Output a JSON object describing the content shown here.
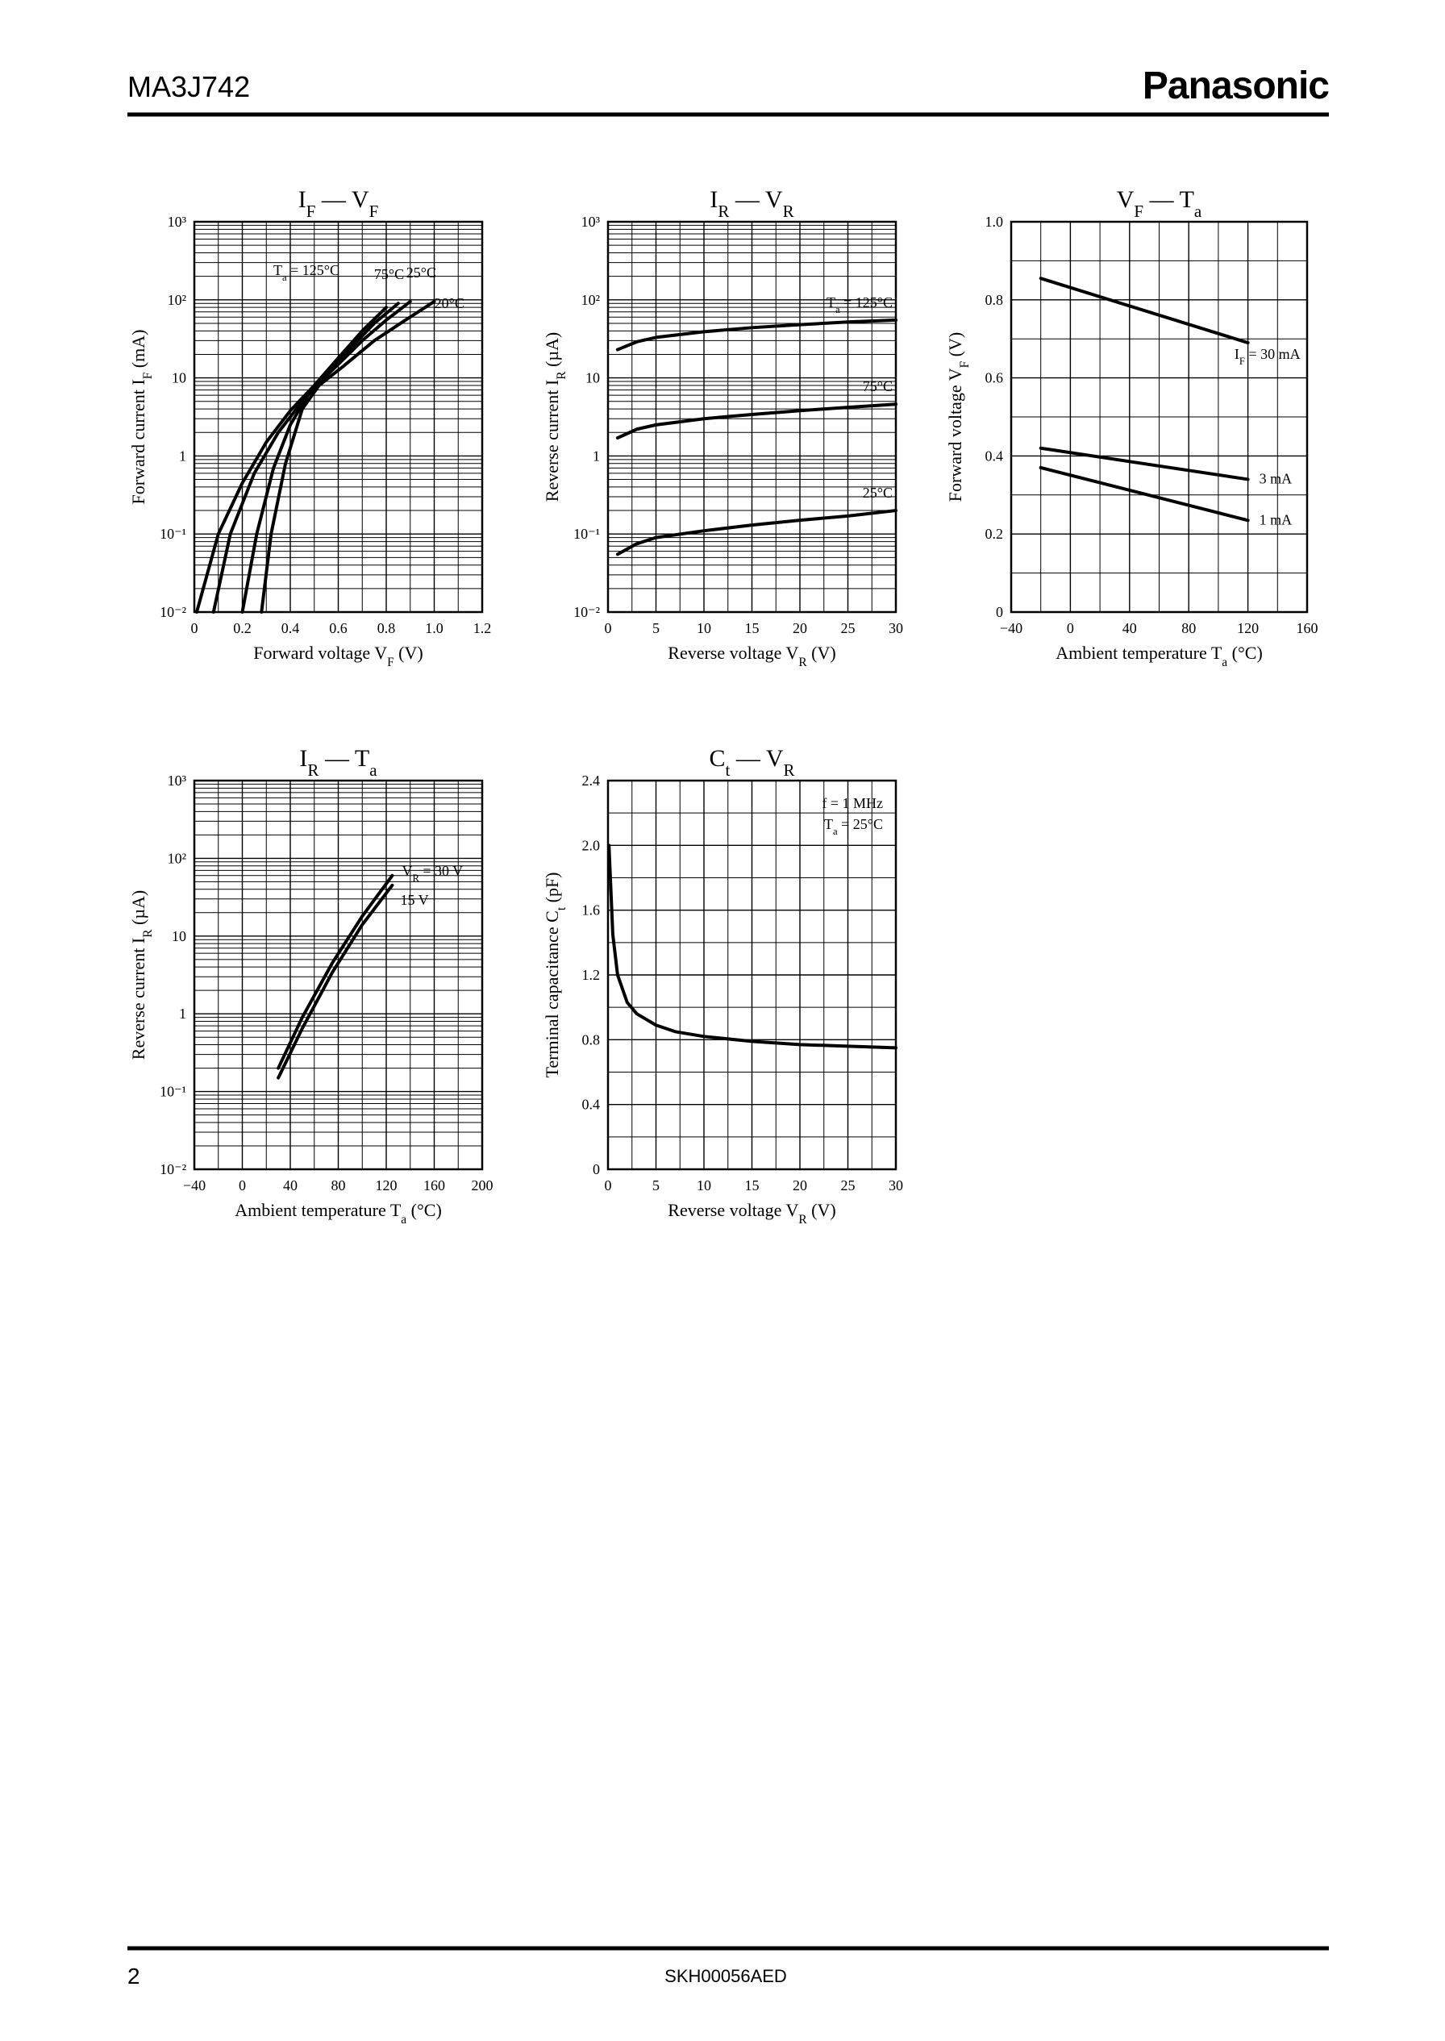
{
  "header": {
    "title": "MA3J742",
    "brand": "Panasonic"
  },
  "footer": {
    "page": "2",
    "code": "SKH00056AED"
  },
  "chart_data": [
    {
      "type": "line",
      "title": [
        {
          "text": "I"
        },
        {
          "text": "F",
          "sub": true
        },
        {
          "text": " — "
        },
        {
          "text": "V"
        },
        {
          "text": "F",
          "sub": true
        }
      ],
      "xlabel": [
        {
          "text": "Forward voltage  V"
        },
        {
          "text": "F",
          "sub": true
        },
        {
          "text": "  (V)"
        }
      ],
      "ylabel": [
        {
          "text": "Forward current  I"
        },
        {
          "text": "F",
          "sub": true
        },
        {
          "text": "  (mA)"
        }
      ],
      "xlim": [
        0,
        1.2
      ],
      "xticks": [
        0,
        0.2,
        0.4,
        0.6,
        0.8,
        {
          "value": 1,
          "label": "1.0"
        },
        1.2
      ],
      "ylim": [
        0.01,
        1000
      ],
      "ylog": true,
      "yticks": [
        {
          "value": 0.01,
          "label": "10⁻²"
        },
        {
          "value": 0.1,
          "label": "10⁻¹"
        },
        1,
        10,
        {
          "value": 100,
          "label": "10²"
        },
        {
          "value": 1000,
          "label": "10³"
        }
      ],
      "grid": true,
      "series": [
        {
          "name": [
            {
              "text": "T"
            },
            {
              "text": "a",
              "sub": true
            },
            {
              "text": " = 125°C"
            }
          ],
          "color": "#000000",
          "x": [
            0.01,
            0.1,
            0.2,
            0.3,
            0.4,
            0.5,
            0.6,
            0.7,
            0.8
          ],
          "values": [
            0.01,
            0.1,
            0.45,
            1.5,
            3.8,
            8,
            18,
            40,
            80
          ]
        },
        {
          "name": [
            {
              "text": "75°C"
            }
          ],
          "color": "#000000",
          "x": [
            0.08,
            0.15,
            0.25,
            0.35,
            0.45,
            0.55,
            0.65,
            0.75,
            0.85
          ],
          "values": [
            0.01,
            0.1,
            0.6,
            2,
            5,
            11,
            24,
            50,
            90
          ]
        },
        {
          "name": [
            {
              "text": "25°C"
            }
          ],
          "color": "#000000",
          "x": [
            0.2,
            0.26,
            0.33,
            0.4,
            0.48,
            0.58,
            0.7,
            0.8,
            0.9
          ],
          "values": [
            0.01,
            0.1,
            0.7,
            2.5,
            6.5,
            13,
            30,
            55,
            95
          ]
        },
        {
          "name": [
            {
              "text": "−20°C"
            }
          ],
          "color": "#000000",
          "x": [
            0.28,
            0.32,
            0.38,
            0.45,
            0.52,
            0.62,
            0.75,
            0.88,
            1.0
          ],
          "values": [
            0.01,
            0.1,
            0.8,
            4,
            8,
            14,
            30,
            55,
            95
          ]
        }
      ]
    },
    {
      "type": "line",
      "title": [
        {
          "text": "I"
        },
        {
          "text": "R",
          "sub": true
        },
        {
          "text": " — "
        },
        {
          "text": "V"
        },
        {
          "text": "R",
          "sub": true
        }
      ],
      "xlabel": [
        {
          "text": "Reverse voltage  V"
        },
        {
          "text": "R",
          "sub": true
        },
        {
          "text": "  (V)"
        }
      ],
      "ylabel": [
        {
          "text": "Reverse current  I"
        },
        {
          "text": "R",
          "sub": true
        },
        {
          "text": "  (µA)"
        }
      ],
      "xlim": [
        0,
        30
      ],
      "xticks": [
        0,
        5,
        10,
        15,
        20,
        25,
        30
      ],
      "ylim": [
        0.01,
        1000
      ],
      "ylog": true,
      "yticks": [
        {
          "value": 0.01,
          "label": "10⁻²"
        },
        {
          "value": 0.1,
          "label": "10⁻¹"
        },
        1,
        10,
        {
          "value": 100,
          "label": "10²"
        },
        {
          "value": 1000,
          "label": "10³"
        }
      ],
      "grid": true,
      "x": [
        1,
        3,
        5,
        10,
        15,
        20,
        25,
        30
      ],
      "series": [
        {
          "name": [
            {
              "text": "T"
            },
            {
              "text": "a",
              "sub": true
            },
            {
              "text": " = 125°C"
            }
          ],
          "color": "#000000",
          "values": [
            23,
            29,
            33,
            39,
            44,
            48,
            52,
            55
          ]
        },
        {
          "name": [
            {
              "text": "75°C"
            }
          ],
          "color": "#000000",
          "values": [
            1.7,
            2.2,
            2.5,
            3,
            3.4,
            3.8,
            4.2,
            4.6
          ]
        },
        {
          "name": [
            {
              "text": "25°C"
            }
          ],
          "color": "#000000",
          "values": [
            0.055,
            0.075,
            0.09,
            0.11,
            0.13,
            0.15,
            0.17,
            0.2
          ]
        }
      ]
    },
    {
      "type": "line",
      "title": [
        {
          "text": "V"
        },
        {
          "text": "F",
          "sub": true
        },
        {
          "text": " — "
        },
        {
          "text": "T"
        },
        {
          "text": "a",
          "sub": true
        }
      ],
      "xlabel": [
        {
          "text": "Ambient temperature  T"
        },
        {
          "text": "a",
          "sub": true
        },
        {
          "text": "  (°C)"
        }
      ],
      "ylabel": [
        {
          "text": "Forward voltage  V"
        },
        {
          "text": "F",
          "sub": true
        },
        {
          "text": "  (V)"
        }
      ],
      "xlim": [
        -40,
        160
      ],
      "xticks": [
        {
          "value": -40,
          "label": "−40"
        },
        0,
        40,
        80,
        120,
        160
      ],
      "ylim": [
        0,
        1
      ],
      "yticks": [
        0,
        0.2,
        0.4,
        0.6,
        0.8,
        {
          "value": 1,
          "label": "1.0"
        }
      ],
      "grid": true,
      "x": [
        -20,
        120
      ],
      "series": [
        {
          "name": [
            {
              "text": "I"
            },
            {
              "text": "F",
              "sub": true
            },
            {
              "text": " = 30 mA"
            }
          ],
          "color": "#000000",
          "values": [
            0.855,
            0.69
          ]
        },
        {
          "name": [
            {
              "text": "3 mA"
            }
          ],
          "color": "#000000",
          "values": [
            0.42,
            0.34
          ]
        },
        {
          "name": [
            {
              "text": "1 mA"
            }
          ],
          "color": "#000000",
          "values": [
            0.37,
            0.235
          ]
        }
      ]
    },
    {
      "type": "line",
      "title": [
        {
          "text": "I"
        },
        {
          "text": "R",
          "sub": true
        },
        {
          "text": " — "
        },
        {
          "text": "T"
        },
        {
          "text": "a",
          "sub": true
        }
      ],
      "xlabel": [
        {
          "text": "Ambient temperature  T"
        },
        {
          "text": "a",
          "sub": true
        },
        {
          "text": "  (°C)"
        }
      ],
      "ylabel": [
        {
          "text": "Reverse current  I"
        },
        {
          "text": "R",
          "sub": true
        },
        {
          "text": "  (µA)"
        }
      ],
      "xlim": [
        -40,
        200
      ],
      "xticks": [
        {
          "value": -40,
          "label": "−40"
        },
        0,
        40,
        80,
        120,
        160,
        200
      ],
      "ylim": [
        0.01,
        1000
      ],
      "ylog": true,
      "yticks": [
        {
          "value": 0.01,
          "label": "10⁻²"
        },
        {
          "value": 0.1,
          "label": "10⁻¹"
        },
        1,
        10,
        {
          "value": 100,
          "label": "10²"
        },
        {
          "value": 1000,
          "label": "10³"
        }
      ],
      "grid": true,
      "x": [
        30,
        50,
        75,
        100,
        125
      ],
      "series": [
        {
          "name": [
            {
              "text": "V"
            },
            {
              "text": "R",
              "sub": true
            },
            {
              "text": " = 30 V"
            }
          ],
          "color": "#000000",
          "values": [
            0.2,
            0.9,
            4.5,
            18,
            60
          ]
        },
        {
          "name": [
            {
              "text": "15 V"
            }
          ],
          "color": "#000000",
          "values": [
            0.15,
            0.65,
            3.4,
            14,
            45
          ]
        }
      ]
    },
    {
      "type": "line",
      "title": [
        {
          "text": "C"
        },
        {
          "text": "t",
          "sub": true
        },
        {
          "text": " — "
        },
        {
          "text": "V"
        },
        {
          "text": "R",
          "sub": true
        }
      ],
      "xlabel": [
        {
          "text": "Reverse voltage  V"
        },
        {
          "text": "R",
          "sub": true
        },
        {
          "text": "  (V)"
        }
      ],
      "ylabel": [
        {
          "text": "Terminal capacitance  C"
        },
        {
          "text": "t",
          "sub": true
        },
        {
          "text": "  (pF)"
        }
      ],
      "xlim": [
        0,
        30
      ],
      "xticks": [
        0,
        5,
        10,
        15,
        20,
        25,
        30
      ],
      "ylim": [
        0,
        2.4
      ],
      "yticks": [
        0,
        0.4,
        0.8,
        1.2,
        1.6,
        {
          "value": 2,
          "label": "2.0"
        },
        2.4
      ],
      "grid": true,
      "annotations": [
        [
          {
            "text": "f = 1 MHz"
          }
        ],
        [
          {
            "text": "T"
          },
          {
            "text": "a",
            "sub": true
          },
          {
            "text": " = 25°C"
          }
        ]
      ],
      "x": [
        0.1,
        0.5,
        1,
        2,
        3,
        5,
        7,
        10,
        15,
        20,
        25,
        30
      ],
      "series": [
        {
          "color": "#000000",
          "values": [
            2.0,
            1.45,
            1.2,
            1.03,
            0.96,
            0.89,
            0.85,
            0.82,
            0.79,
            0.77,
            0.76,
            0.75
          ]
        }
      ]
    }
  ]
}
